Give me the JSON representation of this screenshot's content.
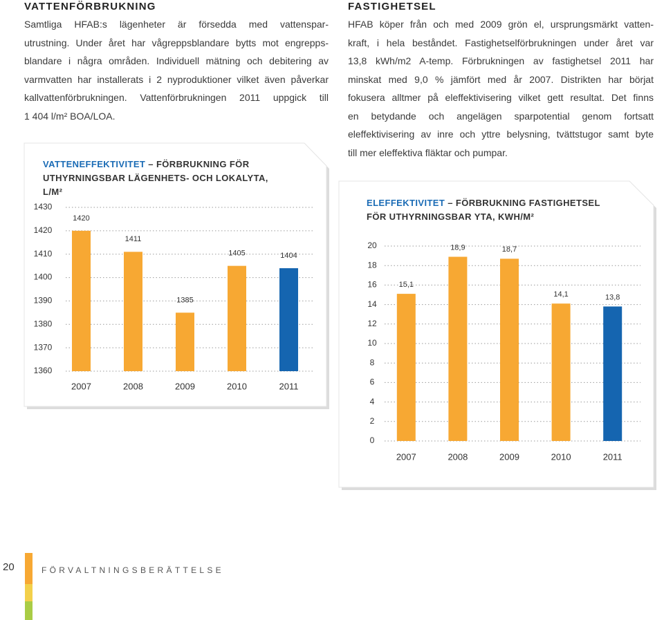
{
  "left": {
    "heading": "VATTENFÖRBRUKNING",
    "lines": [
      "Samtliga HFAB:s lägenheter är försedda med vattenspar-",
      "utrustning. Under året har vågreppsblandare bytts mot engrepps-",
      "blandare i några områden. Individuell mätning och debitering av",
      "varmvatten har installerats i 2 nyproduktioner vilket även påverkar",
      "kallvattenförbrukningen. Vattenförbrukningen 2011 uppgick till",
      "1 404 l/m² BOA/LOA."
    ]
  },
  "right": {
    "heading": "FASTIGHETSEL",
    "lines": [
      "HFAB köper från och med 2009 grön el, ursprungsmärkt vatten-",
      "kraft, i hela beståndet. Fastighetselförbrukningen under året var",
      "13,8 kWh/m2 A-temp. Förbrukningen av fastighetsel 2011 har",
      "minskat med 9,0 % jämfört med år 2007. Distrikten har börjat",
      "fokusera alltmer på eleffektivisering vilket gett resultat. Det finns",
      "en betydande och angelägen sparpotential genom fortsatt",
      "eleffektivisering av inre och yttre belysning, tvättstugor samt byte",
      "till mer eleffektiva fläktar och pumpar."
    ]
  },
  "chart_data": [
    {
      "type": "bar",
      "title": "VATTENEFFEKTIVITET",
      "subtitle": "– FÖRBRUKNING FÖR UTHYRNINGSBAR LÄGENHETS- OCH LOKALYTA, L/M²",
      "categories": [
        "2007",
        "2008",
        "2009",
        "2010",
        "2011"
      ],
      "values": [
        1420,
        1411,
        1385,
        1405,
        1404
      ],
      "colors": [
        "#f7a833",
        "#f7a833",
        "#f7a833",
        "#f7a833",
        "#1565b0"
      ],
      "ylim": [
        1360,
        1430
      ],
      "yticks": [
        1360,
        1370,
        1380,
        1390,
        1400,
        1410,
        1420,
        1430
      ],
      "grid": true
    },
    {
      "type": "bar",
      "title": "ELEFFEKTIVITET",
      "subtitle": "– FÖRBRUKNING FASTIGHETSEL FÖR UTHYRNINGSBAR YTA, KWH/M²",
      "categories": [
        "2007",
        "2008",
        "2009",
        "2010",
        "2011"
      ],
      "values": [
        15.1,
        18.9,
        18.7,
        14.1,
        13.8
      ],
      "value_labels": [
        "15,1",
        "18,9",
        "18,7",
        "14,1",
        "13,8"
      ],
      "colors": [
        "#f7a833",
        "#f7a833",
        "#f7a833",
        "#f7a833",
        "#1565b0"
      ],
      "ylim": [
        0,
        20
      ],
      "yticks": [
        0,
        2,
        4,
        6,
        8,
        10,
        12,
        14,
        16,
        18,
        20
      ],
      "grid": true
    }
  ],
  "footer": {
    "page_number": "20",
    "section": "FÖRVALTNINGSBERÄTTELSE"
  }
}
